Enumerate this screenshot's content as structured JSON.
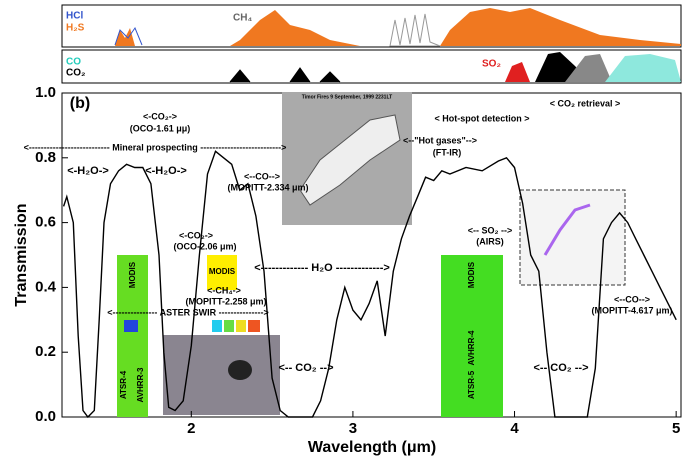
{
  "chart_data": {
    "type": "line",
    "color": "#000000",
    "x_label": "Wavelength (μm)",
    "y_label": "Transmission",
    "xlim": [
      1.2,
      5.03
    ],
    "ylim": [
      0,
      1
    ],
    "xticks": [
      2,
      3,
      4,
      5
    ],
    "yticks": [
      {
        "value": 0,
        "label": "0.0"
      },
      {
        "value": 0.2,
        "label": "0.2"
      },
      {
        "value": 0.4,
        "label": "0.4"
      },
      {
        "value": 0.6,
        "label": "0.6"
      },
      {
        "value": 0.8,
        "label": "0.8"
      },
      {
        "value": 1,
        "label": "1.0"
      }
    ],
    "x": [
      1.21,
      1.23,
      1.27,
      1.3,
      1.33,
      1.36,
      1.4,
      1.43,
      1.46,
      1.5,
      1.55,
      1.6,
      1.65,
      1.7,
      1.75,
      1.8,
      1.83,
      1.86,
      1.9,
      1.95,
      2.0,
      2.05,
      2.1,
      2.15,
      2.2,
      2.25,
      2.3,
      2.35,
      2.4,
      2.45,
      2.5,
      2.55,
      2.6,
      2.75,
      2.8,
      2.85,
      2.9,
      2.95,
      3.0,
      3.05,
      3.1,
      3.15,
      3.2,
      3.25,
      3.3,
      3.35,
      3.4,
      3.45,
      3.5,
      3.55,
      3.6,
      3.7,
      3.8,
      3.9,
      3.95,
      4.0,
      4.05,
      4.1,
      4.15,
      4.2,
      4.25,
      4.45,
      4.5,
      4.55,
      4.6,
      4.65,
      4.7,
      4.75,
      4.8,
      4.85,
      4.9,
      4.95,
      5.0
    ],
    "values": [
      0.65,
      0.68,
      0.6,
      0.25,
      0.02,
      0,
      0.02,
      0.3,
      0.6,
      0.72,
      0.76,
      0.78,
      0.77,
      0.77,
      0.72,
      0.5,
      0.2,
      0.03,
      0.02,
      0.05,
      0.22,
      0.5,
      0.75,
      0.82,
      0.8,
      0.78,
      0.7,
      0.72,
      0.62,
      0.45,
      0.12,
      0.02,
      0,
      0,
      0.05,
      0.15,
      0.3,
      0.4,
      0.33,
      0.3,
      0.35,
      0.42,
      0.25,
      0.45,
      0.55,
      0.62,
      0.68,
      0.74,
      0.73,
      0.76,
      0.75,
      0.77,
      0.76,
      0.79,
      0.8,
      0.77,
      0.66,
      0.5,
      0.45,
      0.2,
      0,
      0,
      0.15,
      0.55,
      0.6,
      0.63,
      0.6,
      0.55,
      0.5,
      0.45,
      0.4,
      0.35,
      0.3
    ],
    "annotations": [
      "(b)",
      "<-CO₂->",
      "(OCO-1.61 μμ)",
      "<--------------------------- Mineral prospecting --------------------------->",
      "<-H₂O->",
      "<-H₂O->",
      "<-CO₂->",
      "(OCO-2.06 μm)",
      "<--CO-->",
      "(MOPITT-2.334 μm)",
      "<-CH₄->",
      "(MOPITT-2.258 μm)",
      "<------------- H₂O ------------->",
      "<--------------- ASTER SWIR --------------->",
      "<-- CO₂ -->",
      "<-- CO₂ -->",
      "< Hot-spot detection >",
      "<--\"Hot gases\"-->",
      "(FT-IR)",
      "< CO₂ retrieval >",
      "<-- SO₂ -->",
      "(AIRS)",
      "<--CO-->",
      "(MOPITT-4.617 μm)"
    ],
    "instrument_labels": [
      "MODIS",
      "ATSR-4",
      "AVHRR-3",
      "MODIS",
      "MODIS",
      "AVHRR-4",
      "ATSR-5"
    ],
    "gas_labels": [
      {
        "text": "HCl",
        "color": "#3355cc"
      },
      {
        "text": "H₂S",
        "color": "#f07820"
      },
      {
        "text": "CH₄",
        "color": "#666666"
      },
      {
        "text": "CO",
        "color": "#22ccbb"
      },
      {
        "text": "CO₂",
        "color": "#000000"
      },
      {
        "text": "SO₂",
        "color": "#e02020"
      }
    ],
    "inset_title": "Timor Fires  9 September, 1999  2231LT"
  }
}
